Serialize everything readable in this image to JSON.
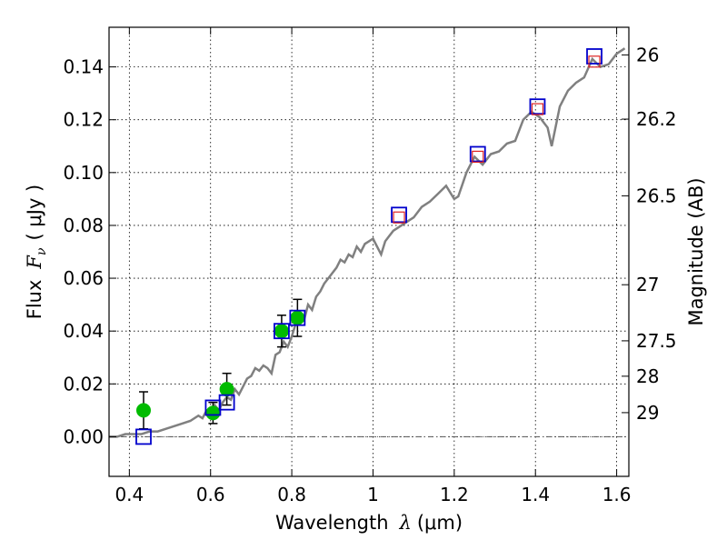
{
  "chart_data": {
    "type": "scatter",
    "xlabel_prefix": "Wavelength",
    "xlabel_symbol": "λ",
    "xlabel_unit": "(μm)",
    "ylabel_prefix": "Flux",
    "ylabel_symbol": "F",
    "ylabel_subscript": "ν",
    "ylabel_unit": "( μJy )",
    "y2label": "Magnitude (AB)",
    "xlim": [
      0.35,
      1.63
    ],
    "ylim": [
      -0.015,
      0.155
    ],
    "grid": true,
    "x_ticks": [
      0.4,
      0.6,
      0.8,
      1.0,
      1.2,
      1.4,
      1.6
    ],
    "x_tick_labels": [
      "0.4",
      "0.6",
      "0.8",
      "1",
      "1.2",
      "1.4",
      "1.6"
    ],
    "y_ticks": [
      0.0,
      0.02,
      0.04,
      0.06,
      0.08,
      0.1,
      0.12,
      0.14
    ],
    "y_tick_labels": [
      "0.00",
      "0.02",
      "0.04",
      "0.06",
      "0.08",
      "0.10",
      "0.12",
      "0.14"
    ],
    "mag_ticks": [
      26,
      26.2,
      26.5,
      27,
      27.5,
      28,
      29
    ],
    "mag_tick_labels": [
      "26",
      "26.2",
      "26.5",
      "27",
      "27.5",
      "28",
      "29"
    ],
    "colors": {
      "model": "#808080",
      "observed": "#00bb00",
      "synthetic": "#0000cc",
      "predicted": "#dd2222",
      "zero_line": "#555555"
    },
    "model_spectrum": {
      "x": [
        0.35,
        0.37,
        0.39,
        0.41,
        0.43,
        0.45,
        0.47,
        0.49,
        0.51,
        0.53,
        0.55,
        0.57,
        0.58,
        0.59,
        0.6,
        0.61,
        0.62,
        0.63,
        0.64,
        0.65,
        0.66,
        0.67,
        0.68,
        0.69,
        0.7,
        0.71,
        0.72,
        0.73,
        0.74,
        0.75,
        0.76,
        0.77,
        0.78,
        0.79,
        0.8,
        0.81,
        0.82,
        0.83,
        0.84,
        0.85,
        0.86,
        0.87,
        0.88,
        0.89,
        0.9,
        0.91,
        0.92,
        0.93,
        0.94,
        0.95,
        0.96,
        0.97,
        0.98,
        0.99,
        1.0,
        1.01,
        1.02,
        1.03,
        1.04,
        1.05,
        1.07,
        1.09,
        1.1,
        1.12,
        1.14,
        1.16,
        1.18,
        1.2,
        1.21,
        1.23,
        1.25,
        1.27,
        1.29,
        1.31,
        1.33,
        1.35,
        1.37,
        1.39,
        1.41,
        1.43,
        1.44,
        1.46,
        1.48,
        1.5,
        1.52,
        1.54,
        1.56,
        1.58,
        1.6,
        1.62
      ],
      "y": [
        0.0,
        0.0,
        0.001,
        0.001,
        0.001,
        0.002,
        0.002,
        0.003,
        0.004,
        0.005,
        0.006,
        0.008,
        0.007,
        0.01,
        0.009,
        0.012,
        0.01,
        0.013,
        0.015,
        0.014,
        0.018,
        0.016,
        0.019,
        0.022,
        0.023,
        0.026,
        0.025,
        0.027,
        0.026,
        0.024,
        0.031,
        0.032,
        0.036,
        0.034,
        0.038,
        0.043,
        0.045,
        0.044,
        0.05,
        0.048,
        0.053,
        0.055,
        0.058,
        0.06,
        0.062,
        0.064,
        0.067,
        0.066,
        0.069,
        0.068,
        0.072,
        0.07,
        0.073,
        0.074,
        0.075,
        0.072,
        0.069,
        0.074,
        0.076,
        0.078,
        0.08,
        0.082,
        0.083,
        0.087,
        0.089,
        0.092,
        0.095,
        0.09,
        0.091,
        0.1,
        0.106,
        0.103,
        0.107,
        0.108,
        0.111,
        0.112,
        0.12,
        0.123,
        0.121,
        0.117,
        0.11,
        0.125,
        0.131,
        0.134,
        0.136,
        0.143,
        0.14,
        0.141,
        0.145,
        0.147
      ]
    },
    "observed_points": {
      "x": [
        0.435,
        0.606,
        0.64,
        0.775,
        0.814
      ],
      "y": [
        0.01,
        0.009,
        0.018,
        0.04,
        0.045
      ],
      "yerr": [
        0.007,
        0.004,
        0.006,
        0.006,
        0.007
      ]
    },
    "synthetic_points": {
      "x": [
        0.435,
        0.606,
        0.64,
        0.775,
        0.814,
        1.064,
        1.258,
        1.405,
        1.545
      ],
      "y": [
        0.0,
        0.011,
        0.013,
        0.04,
        0.045,
        0.084,
        0.107,
        0.125,
        0.144
      ]
    },
    "predicted_points": {
      "x": [
        1.064,
        1.258,
        1.405,
        1.545
      ],
      "y": [
        0.083,
        0.106,
        0.124,
        0.142
      ]
    }
  }
}
